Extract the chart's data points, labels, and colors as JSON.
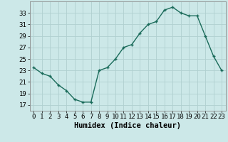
{
  "x": [
    0,
    1,
    2,
    3,
    4,
    5,
    6,
    7,
    8,
    9,
    10,
    11,
    12,
    13,
    14,
    15,
    16,
    17,
    18,
    19,
    20,
    21,
    22,
    23
  ],
  "y": [
    23.5,
    22.5,
    22.0,
    20.5,
    19.5,
    18.0,
    17.5,
    17.5,
    23.0,
    23.5,
    25.0,
    27.0,
    27.5,
    29.5,
    31.0,
    31.5,
    33.5,
    34.0,
    33.0,
    32.5,
    32.5,
    29.0,
    25.5,
    23.0
  ],
  "line_color": "#1a6b5a",
  "marker_color": "#1a6b5a",
  "bg_color": "#cce8e8",
  "grid_color": "#b0d0d0",
  "xlabel": "Humidex (Indice chaleur)",
  "ylim": [
    16,
    35
  ],
  "xlim": [
    -0.5,
    23.5
  ],
  "yticks": [
    17,
    19,
    21,
    23,
    25,
    27,
    29,
    31,
    33
  ],
  "xticks": [
    0,
    1,
    2,
    3,
    4,
    5,
    6,
    7,
    8,
    9,
    10,
    11,
    12,
    13,
    14,
    15,
    16,
    17,
    18,
    19,
    20,
    21,
    22,
    23
  ],
  "xlabel_fontsize": 7.5,
  "tick_fontsize": 6.5
}
